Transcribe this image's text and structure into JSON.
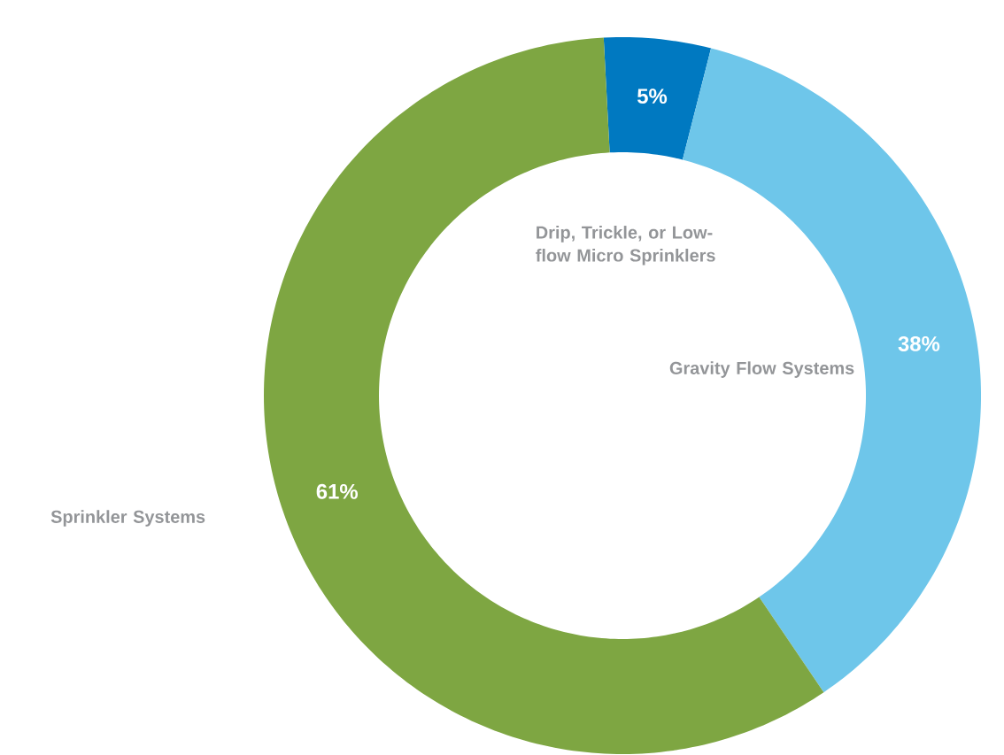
{
  "chart_data": {
    "type": "donut",
    "categories": [
      "Drip, Trickle, or Low-flow Micro Sprinklers",
      "Gravity Flow Systems",
      "Sprinkler Systems"
    ],
    "values": [
      5,
      38,
      61
    ],
    "colors": [
      "#0079c1",
      "#6ec6ea",
      "#7ea642"
    ],
    "value_labels": [
      "5%",
      "38%",
      "61%"
    ]
  }
}
